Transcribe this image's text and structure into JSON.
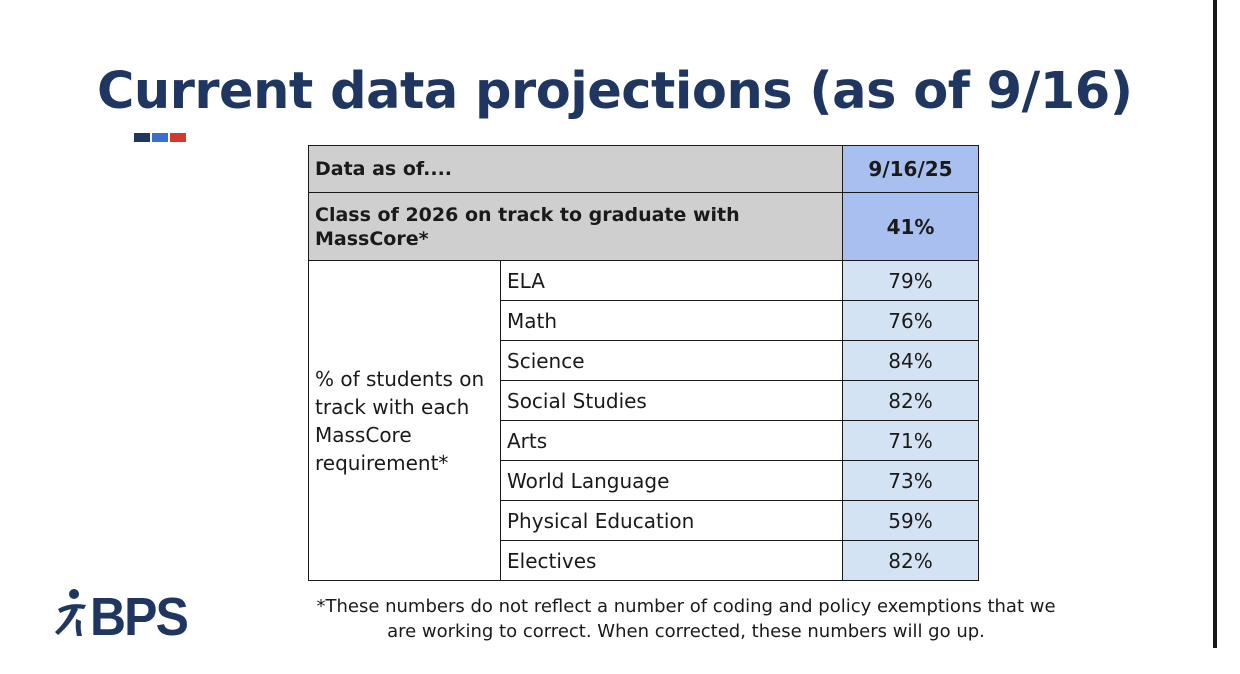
{
  "slide": {
    "title": "Current data projections (as of 9/16)",
    "accent_colors": [
      "#1f3660",
      "#3a6fcf",
      "#d33a2c"
    ],
    "colors": {
      "title": "#1f3660",
      "header_gray": "#cfcfcf",
      "header_blue": "#a8bff0",
      "value_blue": "#d4e3f4"
    }
  },
  "table": {
    "header": {
      "label": "Data as of....",
      "value": "9/16/25"
    },
    "class_row": {
      "label": "Class of 2026 on track to graduate with MassCore*",
      "value": "41%"
    },
    "group_label": "% of students on track with each MassCore requirement*",
    "rows": [
      {
        "subject": "ELA",
        "value": "79%"
      },
      {
        "subject": "Math",
        "value": "76%"
      },
      {
        "subject": "Science",
        "value": "84%"
      },
      {
        "subject": "Social Studies",
        "value": "82%"
      },
      {
        "subject": "Arts",
        "value": "71%"
      },
      {
        "subject": "World Language",
        "value": "73%"
      },
      {
        "subject": "Physical Education",
        "value": "59%"
      },
      {
        "subject": "Electives",
        "value": "82%"
      }
    ]
  },
  "logo": {
    "icon": "bps-figure-icon",
    "text": "BPS"
  },
  "footnote": {
    "line1": "*These numbers do not reflect a number of coding and policy exemptions that we",
    "line2": "are working to correct. When corrected, these numbers will go up."
  }
}
